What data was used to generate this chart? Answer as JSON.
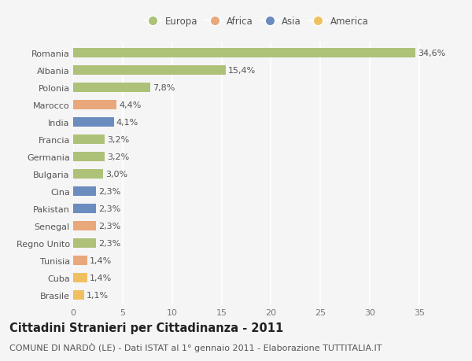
{
  "countries": [
    "Romania",
    "Albania",
    "Polonia",
    "Marocco",
    "India",
    "Francia",
    "Germania",
    "Bulgaria",
    "Cina",
    "Pakistan",
    "Senegal",
    "Regno Unito",
    "Tunisia",
    "Cuba",
    "Brasile"
  ],
  "values": [
    34.6,
    15.4,
    7.8,
    4.4,
    4.1,
    3.2,
    3.2,
    3.0,
    2.3,
    2.3,
    2.3,
    2.3,
    1.4,
    1.4,
    1.1
  ],
  "labels": [
    "34,6%",
    "15,4%",
    "7,8%",
    "4,4%",
    "4,1%",
    "3,2%",
    "3,2%",
    "3,0%",
    "2,3%",
    "2,3%",
    "2,3%",
    "2,3%",
    "1,4%",
    "1,4%",
    "1,1%"
  ],
  "continents": [
    "Europa",
    "Europa",
    "Europa",
    "Africa",
    "Asia",
    "Europa",
    "Europa",
    "Europa",
    "Asia",
    "Asia",
    "Africa",
    "Europa",
    "Africa",
    "America",
    "America"
  ],
  "continent_colors": {
    "Europa": "#adc178",
    "Africa": "#e8a87c",
    "Asia": "#6b8cbf",
    "America": "#f0c060"
  },
  "xlim": [
    0,
    37
  ],
  "xticks": [
    0,
    5,
    10,
    15,
    20,
    25,
    30,
    35
  ],
  "background_color": "#f5f5f5",
  "grid_color": "#ffffff",
  "bar_height": 0.55,
  "title": "Cittadini Stranieri per Cittadinanza - 2011",
  "subtitle": "COMUNE DI NARDÒ (LE) - Dati ISTAT al 1° gennaio 2011 - Elaborazione TUTTITALIA.IT",
  "title_fontsize": 10.5,
  "subtitle_fontsize": 8,
  "label_fontsize": 8,
  "tick_fontsize": 8,
  "legend_fontsize": 8.5
}
